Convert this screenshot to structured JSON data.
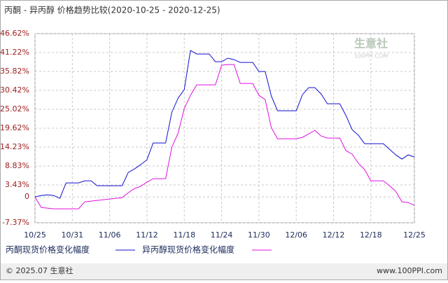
{
  "chart_data": {
    "type": "line",
    "title": "丙酮 - 异丙醇 价格趋势比较(2020-10-25 - 2020-12-25)",
    "categories": [
      "10/25",
      null,
      null,
      null,
      null,
      null,
      "10/31",
      null,
      null,
      null,
      null,
      null,
      "11/06",
      null,
      null,
      null,
      null,
      null,
      "11/12",
      null,
      null,
      null,
      null,
      null,
      "11/18",
      null,
      null,
      null,
      null,
      null,
      "11/24",
      null,
      null,
      null,
      null,
      null,
      "11/30",
      null,
      null,
      null,
      null,
      null,
      "12/06",
      null,
      null,
      null,
      null,
      null,
      "12/12",
      null,
      null,
      null,
      null,
      null,
      "12/18",
      null,
      null,
      null,
      null,
      null,
      null,
      "12/25"
    ],
    "series": [
      {
        "name": "丙酮现货价格变化幅度",
        "color": "#1010d0",
        "values": [
          0,
          0.4,
          0.6,
          0.4,
          -0.4,
          4.0,
          4.0,
          4.0,
          4.6,
          4.6,
          3.2,
          3.2,
          3.2,
          3.2,
          3.2,
          7.0,
          8.0,
          9.2,
          10.6,
          15.4,
          15.4,
          15.4,
          24.2,
          28.2,
          30.6,
          41.8,
          40.8,
          40.8,
          40.8,
          38.6,
          38.6,
          39.6,
          39.2,
          38.4,
          38.4,
          38.4,
          35.8,
          35.8,
          28.8,
          24.6,
          24.6,
          24.6,
          24.6,
          29.2,
          31.2,
          31.2,
          29.4,
          26.6,
          26.6,
          26.6,
          23.2,
          19.2,
          17.6,
          15.2,
          15.2,
          15.2,
          15.2,
          13.6,
          12.0,
          10.8,
          12.0,
          11.4
        ]
      },
      {
        "name": "异丙醇现货价格变化幅度",
        "color": "#e010e0",
        "values": [
          0,
          -3,
          -3.2,
          -3.4,
          -3.4,
          -3.4,
          -3.4,
          -3.4,
          -1.4,
          -1.2,
          -1,
          -0.8,
          -0.6,
          -0.4,
          -0.2,
          1.2,
          2.4,
          3.0,
          4.2,
          5.2,
          5.2,
          5.2,
          14.2,
          18.2,
          25.2,
          29,
          32,
          32,
          32,
          32,
          37.6,
          37.8,
          37.8,
          32.4,
          32.4,
          32.4,
          29,
          27.8,
          19.8,
          16.6,
          16.6,
          16.6,
          16.6,
          17,
          18,
          19,
          17.4,
          16.8,
          16.8,
          16.8,
          13.2,
          12.2,
          9.6,
          7.8,
          4.6,
          4.6,
          4.6,
          3.2,
          1.6,
          -1.4,
          -1.6,
          -2.4
        ]
      }
    ],
    "ylim": [
      -7.37,
      46.62
    ],
    "yticks": [
      {
        "value": -7.37,
        "label": "-7.37%"
      },
      0,
      {
        "value": 3.43,
        "label": "3.43%"
      },
      {
        "value": 8.83,
        "label": "8.83%"
      },
      {
        "value": 14.23,
        "label": "14.23%"
      },
      {
        "value": 19.62,
        "label": "19.62%"
      },
      {
        "value": 25.02,
        "label": "25.02%"
      },
      {
        "value": 30.42,
        "label": "30.42%"
      },
      {
        "value": 35.82,
        "label": "35.82%"
      },
      {
        "value": 41.22,
        "label": "41.22%"
      },
      {
        "value": 46.62,
        "label": "46.62%"
      }
    ],
    "grid": true,
    "watermark": [
      "生意社",
      "100PPI.COM"
    ],
    "footer": {
      "left": "© 2025.07 生意社",
      "right": "www.100PPI.com"
    }
  }
}
